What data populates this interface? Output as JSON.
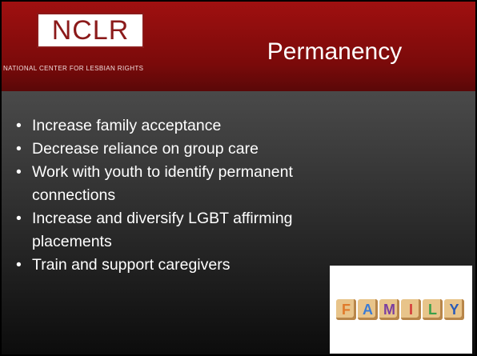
{
  "header": {
    "logo": "NCLR",
    "organization": "NATIONAL CENTER FOR LESBIAN RIGHTS",
    "title": "Permanency"
  },
  "bullets": [
    [
      "Increase family acceptance"
    ],
    [
      "Decrease reliance on group care"
    ],
    [
      "Work with youth to identify permanent",
      "connections"
    ],
    [
      "Increase and diversify LGBT affirming",
      "placements"
    ],
    [
      "Train and support caregivers"
    ]
  ],
  "image": {
    "letters": [
      "F",
      "A",
      "M",
      "I",
      "L",
      "Y"
    ]
  }
}
